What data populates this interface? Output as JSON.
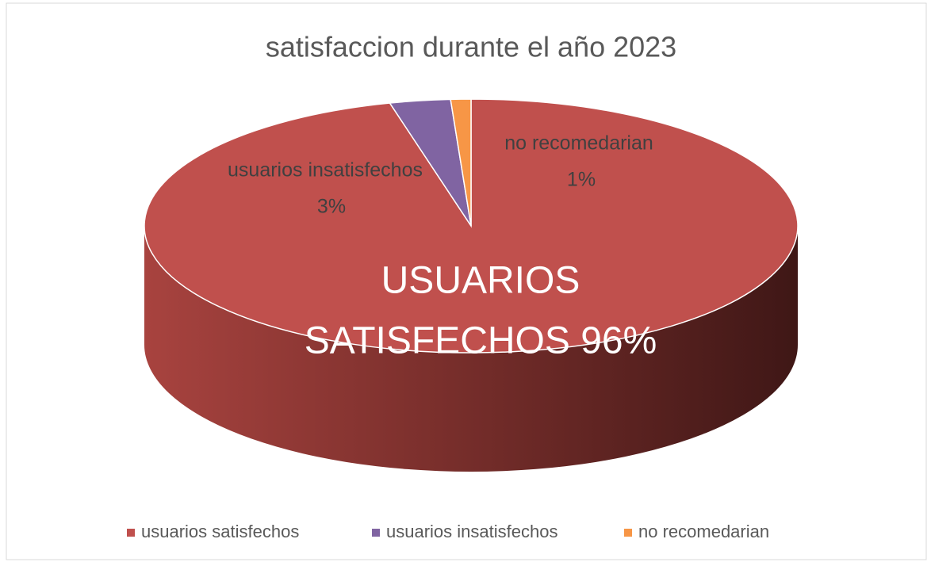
{
  "chart_data": {
    "type": "pie",
    "title": "satisfaccion durante el año 2023",
    "categories": [
      "usuarios satisfechos",
      "usuarios insatisfechos",
      "no recomedarian"
    ],
    "values": [
      96,
      3,
      1
    ],
    "value_labels": [
      [
        "USUARIOS",
        "SATISFECHOS 96%"
      ],
      [
        "usuarios insatisfechos",
        "3%"
      ],
      [
        "no recomedarian",
        "1%"
      ]
    ],
    "colors": [
      "#c0504d",
      "#8064a2",
      "#f79646"
    ],
    "legend": "bottom"
  }
}
